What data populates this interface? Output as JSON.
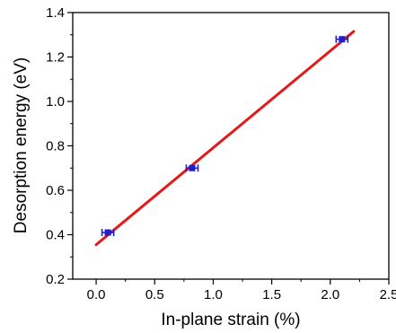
{
  "chart_data": {
    "type": "scatter",
    "title": "",
    "xlabel": "In-plane strain (%)",
    "ylabel": "Desorption energy (eV)",
    "xlim": [
      -0.2,
      2.5
    ],
    "ylim": [
      0.2,
      1.4
    ],
    "xticks": [
      0.0,
      0.5,
      1.0,
      1.5,
      2.0,
      2.5
    ],
    "xtick_labels": [
      "0.0",
      "0.5",
      "1.0",
      "1.5",
      "2.0",
      "2.5"
    ],
    "yticks": [
      0.2,
      0.4,
      0.6,
      0.8,
      1.0,
      1.2,
      1.4
    ],
    "ytick_labels": [
      "0.2",
      "0.4",
      "0.6",
      "0.8",
      "1.0",
      "1.2",
      "1.4"
    ],
    "grid": false,
    "legend": "none",
    "series": [
      {
        "kind": "points",
        "color": "#1f1fcc",
        "marker": "square",
        "x": [
          0.1,
          0.82,
          2.1
        ],
        "y": [
          0.41,
          0.7,
          1.28
        ],
        "x_error": [
          0.05,
          0.05,
          0.05
        ]
      },
      {
        "kind": "fit-line",
        "color": "#e31a1c",
        "x": [
          0.0,
          2.2
        ],
        "y": [
          0.355,
          1.315
        ]
      }
    ]
  }
}
